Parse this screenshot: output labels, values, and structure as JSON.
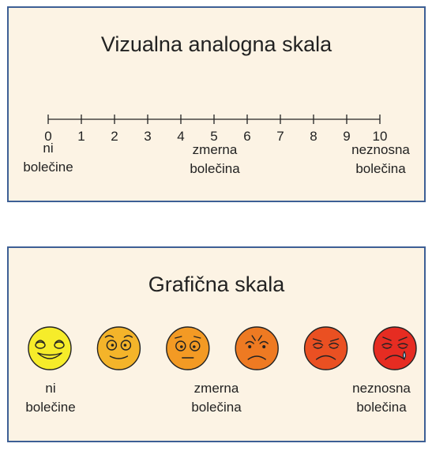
{
  "vas": {
    "title": "Vizualna analogna skala",
    "ticks": [
      "0",
      "1",
      "2",
      "3",
      "4",
      "5",
      "6",
      "7",
      "8",
      "9",
      "10"
    ],
    "label_left": [
      "ni",
      "bolečine"
    ],
    "label_mid": [
      "zmerna",
      "bolečina"
    ],
    "label_right": [
      "neznosna",
      "bolečina"
    ]
  },
  "graf": {
    "title": "Grafična skala",
    "faces": [
      {
        "name": "face-no-pain",
        "color": "#f6ec2a"
      },
      {
        "name": "face-mild",
        "color": "#f4b42a"
      },
      {
        "name": "face-moderate",
        "color": "#f39a24"
      },
      {
        "name": "face-moderate-severe",
        "color": "#ee7a22"
      },
      {
        "name": "face-severe",
        "color": "#ea5022"
      },
      {
        "name": "face-unbearable",
        "color": "#e62c22"
      }
    ],
    "label_left": [
      "ni",
      "bolečine"
    ],
    "label_mid": [
      "zmerna",
      "bolečina"
    ],
    "label_right": [
      "neznosna",
      "bolečina"
    ]
  },
  "colors": {
    "border": "#3d5f95",
    "panel_bg": "#fcf3e4"
  }
}
